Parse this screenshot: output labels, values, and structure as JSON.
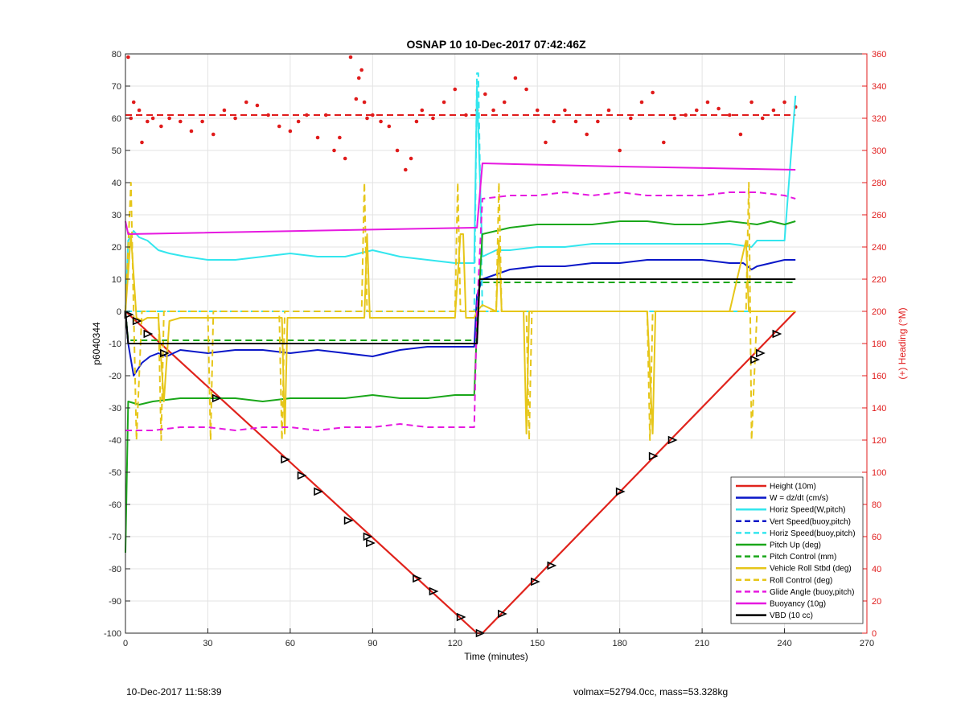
{
  "footer": {
    "left": "10-Dec-2017 11:58:39",
    "right": "volmax=52794.0cc, mass=53.328kg"
  },
  "chart_data": {
    "type": "line",
    "title": "OSNAP 10 10-Dec-2017 07:42:46Z",
    "xlabel": "Time (minutes)",
    "ylabel": "p6040344",
    "y2label": "(+) Heading (°M)",
    "xlim": [
      0,
      270
    ],
    "ylim": [
      -100,
      80
    ],
    "y2lim": [
      0,
      360
    ],
    "xticks": [
      0,
      30,
      60,
      90,
      120,
      150,
      180,
      210,
      240,
      270
    ],
    "yticks": [
      -100,
      -90,
      -80,
      -70,
      -60,
      -50,
      -40,
      -30,
      -20,
      -10,
      0,
      10,
      20,
      30,
      40,
      50,
      60,
      70,
      80
    ],
    "y2ticks": [
      0,
      20,
      40,
      60,
      80,
      100,
      120,
      140,
      160,
      180,
      200,
      220,
      240,
      260,
      280,
      300,
      320,
      340,
      360
    ],
    "grid": true,
    "legend_position": "bottom-right",
    "colors": {
      "red": "#e0231c",
      "blue": "#0a17c8",
      "cyan": "#33e6ee",
      "green": "#1aa71a",
      "yellow": "#e6c619",
      "magenta": "#e619e0",
      "black": "#000000",
      "heading": "#e01b1b"
    },
    "series": [
      {
        "name": "Height (10m)",
        "color": "red",
        "dash": false,
        "axis": "left",
        "x": [
          0,
          128,
          130,
          244
        ],
        "y": [
          0,
          -100,
          -100,
          0
        ]
      },
      {
        "name": "W = dz/dt (cm/s)",
        "color": "blue",
        "dash": false,
        "axis": "left",
        "x": [
          0,
          1,
          3,
          6,
          9,
          12,
          15,
          20,
          30,
          40,
          50,
          60,
          70,
          80,
          90,
          100,
          110,
          120,
          127,
          128,
          130,
          140,
          150,
          160,
          170,
          180,
          190,
          200,
          210,
          220,
          225,
          228,
          230,
          235,
          240,
          244
        ],
        "y": [
          0,
          -10,
          -20,
          -16,
          -14,
          -13,
          -14,
          -12,
          -13,
          -12,
          -12,
          -13,
          -12,
          -13,
          -14,
          -12,
          -11,
          -11,
          -11,
          5,
          10,
          13,
          14,
          14,
          15,
          15,
          16,
          16,
          16,
          15,
          15,
          13,
          14,
          15,
          16,
          16
        ]
      },
      {
        "name": "Horiz Speed(W,pitch)",
        "color": "cyan",
        "dash": false,
        "axis": "left",
        "x": [
          0,
          1,
          3,
          5,
          8,
          12,
          16,
          22,
          30,
          40,
          50,
          60,
          70,
          80,
          90,
          100,
          110,
          120,
          127,
          128,
          130,
          135,
          140,
          150,
          160,
          170,
          180,
          190,
          200,
          210,
          220,
          228,
          230,
          235,
          240,
          244
        ],
        "y": [
          0,
          22,
          25,
          23,
          22,
          19,
          18,
          17,
          16,
          16,
          17,
          18,
          17,
          17,
          19,
          17,
          16,
          15,
          15,
          70,
          17,
          19,
          19,
          20,
          20,
          21,
          21,
          21,
          21,
          21,
          21,
          20,
          22,
          22,
          22,
          67
        ]
      },
      {
        "name": "Vert Speed(buoy,pitch)",
        "color": "blue",
        "dash": true,
        "axis": "left",
        "x": [
          0,
          1,
          128,
          129,
          244
        ],
        "y": [
          0,
          -10,
          -10,
          10,
          10
        ]
      },
      {
        "name": "Horiz Speed(buoy,pitch)",
        "color": "cyan",
        "dash": true,
        "axis": "left",
        "x": [
          0,
          1,
          127,
          128,
          128.5,
          130,
          244
        ],
        "y": [
          0,
          0,
          0,
          74,
          74,
          0,
          0
        ]
      },
      {
        "name": "Pitch Up (deg)",
        "color": "green",
        "dash": false,
        "axis": "left",
        "x": [
          0,
          1,
          5,
          10,
          20,
          30,
          40,
          50,
          60,
          70,
          80,
          90,
          100,
          110,
          120,
          127,
          128,
          130,
          135,
          140,
          150,
          160,
          170,
          180,
          190,
          200,
          210,
          220,
          230,
          235,
          240,
          244
        ],
        "y": [
          -75,
          -28,
          -29,
          -28,
          -27,
          -27,
          -27,
          -28,
          -27,
          -27,
          -27,
          -26,
          -27,
          -27,
          -26,
          -26,
          -5,
          24,
          25,
          26,
          27,
          27,
          27,
          28,
          28,
          27,
          27,
          28,
          27,
          28,
          27,
          28
        ]
      },
      {
        "name": "Pitch Control (mm)",
        "color": "green",
        "dash": true,
        "axis": "left",
        "x": [
          0,
          1,
          128,
          129,
          244
        ],
        "y": [
          0,
          -9,
          -9,
          9,
          9
        ]
      },
      {
        "name": "Vehicle Roll Stbd (deg)",
        "color": "yellow",
        "dash": false,
        "axis": "left",
        "x": [
          0,
          2,
          4,
          6,
          8,
          12,
          14,
          16,
          20,
          40,
          57,
          58,
          59,
          60,
          70,
          87,
          88,
          89,
          90,
          100,
          120,
          122,
          123,
          124,
          127,
          128,
          130,
          135,
          136,
          137,
          140,
          145,
          146,
          147,
          150,
          160,
          170,
          180,
          190,
          192,
          193,
          194,
          200,
          220,
          226,
          227,
          228,
          230,
          235,
          240,
          244
        ],
        "y": [
          0,
          24,
          -2,
          -3,
          -2,
          -2,
          -28,
          -3,
          -2,
          -2,
          -2,
          -38,
          -2,
          -2,
          -2,
          -2,
          24,
          -2,
          -2,
          -2,
          -2,
          24,
          24,
          -2,
          -2,
          0,
          2,
          0,
          22,
          0,
          0,
          0,
          -38,
          0,
          0,
          0,
          0,
          0,
          0,
          -38,
          0,
          0,
          0,
          0,
          22,
          0,
          0,
          0,
          0,
          0,
          0
        ]
      },
      {
        "name": "Roll Control (deg)",
        "color": "yellow",
        "dash": true,
        "axis": "left",
        "x": [
          0,
          2,
          3,
          4,
          6,
          12,
          13,
          14,
          20,
          30,
          31,
          32,
          40,
          56,
          57,
          58,
          60,
          86,
          87,
          88,
          90,
          120,
          121,
          122,
          127,
          128,
          130,
          135,
          136,
          137,
          140,
          146,
          147,
          148,
          150,
          190,
          191,
          192,
          200,
          226,
          227,
          228,
          230,
          235,
          240,
          244
        ],
        "y": [
          0,
          40,
          0,
          -40,
          0,
          0,
          -40,
          0,
          0,
          0,
          -40,
          0,
          0,
          0,
          -40,
          0,
          0,
          0,
          40,
          0,
          0,
          0,
          40,
          0,
          0,
          0,
          0,
          0,
          40,
          0,
          0,
          0,
          -40,
          0,
          0,
          0,
          -40,
          0,
          0,
          0,
          40,
          -40,
          0,
          0,
          0,
          0
        ]
      },
      {
        "name": "Glide Angle (buoy,pitch)",
        "color": "magenta",
        "dash": true,
        "axis": "left",
        "x": [
          0,
          1,
          10,
          20,
          30,
          40,
          50,
          60,
          70,
          80,
          90,
          100,
          110,
          120,
          127,
          128,
          130,
          140,
          150,
          160,
          170,
          180,
          190,
          200,
          210,
          220,
          230,
          240,
          244
        ],
        "y": [
          -37,
          -37,
          -37,
          -36,
          -36,
          -37,
          -36,
          -36,
          -37,
          -36,
          -36,
          -35,
          -36,
          -36,
          -36,
          0,
          35,
          36,
          36,
          37,
          36,
          37,
          36,
          36,
          36,
          37,
          37,
          36,
          35
        ]
      },
      {
        "name": "Buoyancy (10g)",
        "color": "magenta",
        "dash": false,
        "axis": "left",
        "x": [
          0,
          1,
          127,
          128,
          130,
          180,
          244
        ],
        "y": [
          28,
          24,
          26,
          26,
          46,
          45,
          44
        ]
      },
      {
        "name": "VBD (10 cc)",
        "color": "black",
        "dash": false,
        "axis": "left",
        "x": [
          0,
          1,
          127,
          128,
          129,
          244
        ],
        "y": [
          0,
          -10,
          -10,
          -10,
          10,
          10
        ]
      }
    ],
    "dive_markers": {
      "x": [
        1,
        4,
        8,
        14,
        33,
        58,
        64,
        70,
        81,
        88,
        89,
        106,
        112,
        122,
        129,
        137,
        149,
        155,
        180,
        192,
        199,
        229,
        231,
        237
      ],
      "y": [
        -1,
        -3,
        -7,
        -13,
        -27,
        -46,
        -51,
        -56,
        -65,
        -70,
        -72,
        -83,
        -87,
        -95,
        -100,
        -94,
        -84,
        -79,
        -56,
        -45,
        -40,
        -15,
        -13,
        -7
      ]
    },
    "heading": {
      "axis": "right",
      "mean": 322,
      "x": [
        1,
        2,
        3,
        5,
        6,
        8,
        10,
        13,
        16,
        20,
        24,
        28,
        32,
        36,
        40,
        44,
        48,
        52,
        56,
        60,
        63,
        66,
        70,
        73,
        76,
        78,
        80,
        82,
        84,
        85,
        86,
        87,
        88,
        90,
        93,
        96,
        99,
        102,
        104,
        106,
        108,
        112,
        116,
        120,
        124,
        128,
        131,
        134,
        138,
        142,
        146,
        150,
        153,
        156,
        160,
        164,
        168,
        172,
        176,
        180,
        184,
        188,
        192,
        196,
        200,
        204,
        208,
        212,
        216,
        220,
        224,
        228,
        232,
        236,
        240,
        244
      ],
      "y": [
        358,
        320,
        330,
        325,
        305,
        318,
        320,
        315,
        320,
        318,
        312,
        318,
        310,
        325,
        320,
        330,
        328,
        322,
        315,
        312,
        318,
        322,
        308,
        322,
        300,
        308,
        295,
        358,
        332,
        345,
        350,
        330,
        320,
        322,
        318,
        315,
        300,
        288,
        295,
        318,
        325,
        320,
        330,
        338,
        322,
        325,
        335,
        325,
        330,
        345,
        338,
        325,
        305,
        318,
        325,
        318,
        310,
        318,
        325,
        300,
        320,
        330,
        336,
        305,
        320,
        322,
        325,
        330,
        326,
        322,
        310,
        330,
        320,
        325,
        330,
        327
      ]
    }
  }
}
